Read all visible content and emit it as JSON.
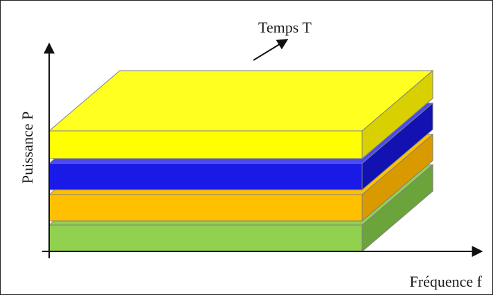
{
  "labels": {
    "y_axis": "Puissance P",
    "x_axis": "Fréquence f",
    "depth_axis": "Temps T"
  },
  "layers": [
    {
      "name": "green",
      "front": "#92d050",
      "top": "#92d050",
      "side": "#6aa43a"
    },
    {
      "name": "orange",
      "front": "#ffc000",
      "top": "#ffc000",
      "side": "#d99a00"
    },
    {
      "name": "blue",
      "front": "#1a1ae6",
      "top": "#4a4af0",
      "side": "#1212b3"
    },
    {
      "name": "yellow",
      "front": "#ffff00",
      "top": "#ffff20",
      "side": "#d8d000"
    }
  ],
  "colors": {
    "axis": "#111111",
    "edge": "#7f7f7f"
  }
}
